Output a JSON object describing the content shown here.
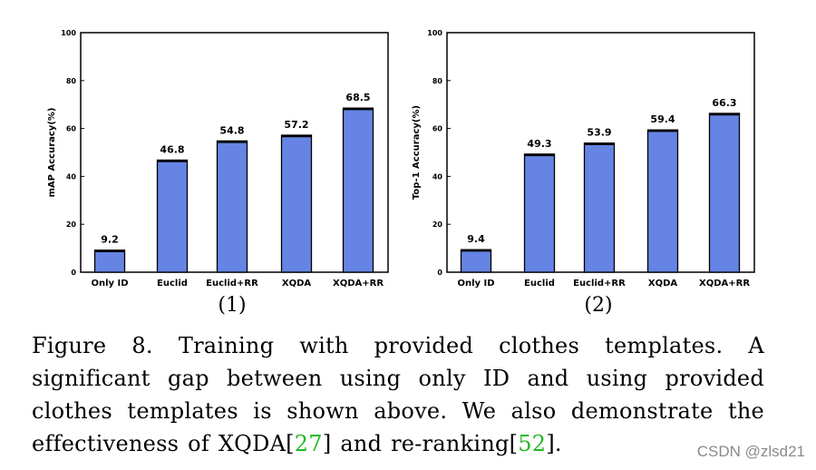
{
  "chart_data": [
    {
      "type": "bar",
      "ylabel": "mAP Accuracy(%)",
      "categories": [
        "Only ID",
        "Euclid",
        "Euclid+RR",
        "XQDA",
        "XQDA+RR"
      ],
      "values": [
        9.2,
        46.8,
        54.8,
        57.2,
        68.5
      ],
      "value_labels": [
        "9.2",
        "46.8",
        "54.8",
        "57.2",
        "68.5"
      ],
      "ylim": [
        0,
        100
      ],
      "yticks": [
        "0",
        "20",
        "40",
        "60",
        "80",
        "100"
      ],
      "bar_color": "#6584e4",
      "grid": false,
      "sublabel": "(1)"
    },
    {
      "type": "bar",
      "ylabel": "Top-1 Accuracy(%)",
      "categories": [
        "Only ID",
        "Euclid",
        "Euclid+RR",
        "XQDA",
        "XQDA+RR"
      ],
      "values": [
        9.4,
        49.3,
        53.9,
        59.4,
        66.3
      ],
      "value_labels": [
        "9.4",
        "49.3",
        "53.9",
        "59.4",
        "66.3"
      ],
      "ylim": [
        0,
        100
      ],
      "yticks": [
        "0",
        "20",
        "40",
        "60",
        "80",
        "100"
      ],
      "bar_color": "#6584e4",
      "grid": false,
      "sublabel": "(2)"
    }
  ],
  "caption": {
    "part1": "Figure 8. Training with provided clothes templates.  A significant gap between using only ID and using provided clothes templates is shown above. We also demonstrate the effectiveness of XQDA[",
    "cite1": "27",
    "part2": "] and re-ranking[",
    "cite2": "52",
    "part3": "]."
  },
  "watermark": "CSDN @zlsd21"
}
